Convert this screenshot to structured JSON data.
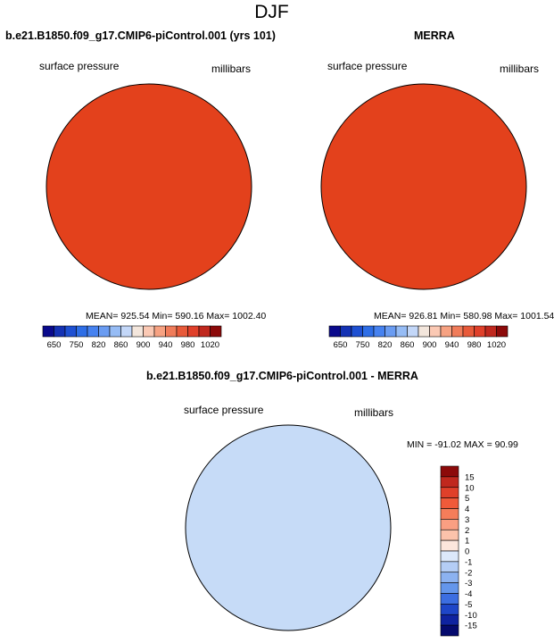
{
  "figure_title": "DJF",
  "panels": [
    {
      "title": "b.e21.B1850.f09_g17.CMIP6-piControl.001 (yrs 101)",
      "left_label": "surface pressure",
      "right_label": "millibars",
      "stats": "MEAN= 925.54  Min= 590.16  Max= 1002.40"
    },
    {
      "title": "MERRA",
      "left_label": "surface pressure",
      "right_label": "millibars",
      "stats": "MEAN= 926.81  Min= 580.98  Max= 1001.54"
    },
    {
      "title": "b.e21.B1850.f09_g17.CMIP6-piControl.001 - MERRA",
      "left_label": "surface pressure",
      "right_label": "millibars",
      "stats": "MIN = -91.02 MAX =  90.99"
    }
  ],
  "colorbar_abs": {
    "labels": [
      "650",
      "750",
      "820",
      "860",
      "900",
      "940",
      "980",
      "1020"
    ],
    "colors": [
      "#0a0a8c",
      "#1432b4",
      "#1e50d2",
      "#2e6ee6",
      "#4682f0",
      "#6a9cf2",
      "#96bcf5",
      "#c3d7f8",
      "#f3e6dc",
      "#fbc9b4",
      "#f7a282",
      "#f07c5a",
      "#e85a3a",
      "#e0402a",
      "#c0281e",
      "#8c0a0a"
    ],
    "ocean_color": "#e3411c",
    "ice_color": "#0a1478"
  },
  "colorbar_diff": {
    "labels": [
      "15",
      "10",
      "5",
      "4",
      "3",
      "2",
      "1",
      "0",
      "-1",
      "-2",
      "-3",
      "-4",
      "-5",
      "-10",
      "-15"
    ],
    "colors": [
      "#8c0a0a",
      "#c0281e",
      "#e0402a",
      "#f05a3a",
      "#f57d5a",
      "#fa9f82",
      "#fcc3ab",
      "#fce6dc",
      "#dce8fa",
      "#b4cdf5",
      "#8cb2f0",
      "#6496eb",
      "#3c6ee1",
      "#1e46c8",
      "#0f23a0",
      "#050a6e"
    ]
  }
}
